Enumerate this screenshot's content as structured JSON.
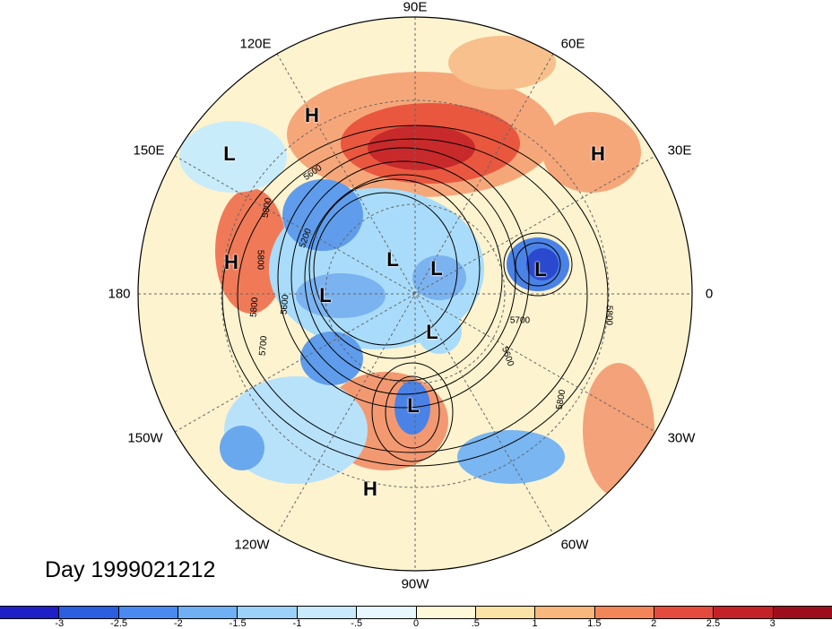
{
  "title_label": "Day 1999021212",
  "longitude_labels": [
    "90E",
    "60E",
    "30E",
    "0",
    "30W",
    "60W",
    "90W",
    "120W",
    "150W",
    "180",
    "150E",
    "120E"
  ],
  "pressure_centers": [
    {
      "name": "H",
      "region": "east-siberia"
    },
    {
      "name": "L",
      "region": "west-pacific"
    },
    {
      "name": "H",
      "region": "north-pacific"
    },
    {
      "name": "L",
      "region": "gulf-of-alaska"
    },
    {
      "name": "L",
      "region": "arctic-canada"
    },
    {
      "name": "L",
      "region": "arctic-greenland"
    },
    {
      "name": "L",
      "region": "hudson-bay"
    },
    {
      "name": "L",
      "region": "eastern-us"
    },
    {
      "name": "H",
      "region": "mexico"
    },
    {
      "name": "L",
      "region": "norwegian-sea"
    },
    {
      "name": "H",
      "region": "western-asia"
    }
  ],
  "contour_labels": [
    "5800",
    "5800",
    "5600",
    "5600",
    "5200",
    "5800",
    "5700",
    "5700",
    "5600",
    "5800",
    "5800"
  ],
  "colorbar": {
    "ticks": [
      "-3",
      "-2.5",
      "-2",
      "-1.5",
      "-1",
      "-.5",
      "0",
      ".5",
      "1",
      "1.5",
      "2",
      "2.5",
      "3"
    ],
    "colors": [
      "#1f1fc8",
      "#2a5fe0",
      "#4a8af0",
      "#6fb0f5",
      "#9cd2fa",
      "#c8eafc",
      "#e8f7fd",
      "#fdf8d8",
      "#fbe3a6",
      "#f8b77c",
      "#f28658",
      "#e44b3c",
      "#c42228",
      "#9e0d1c"
    ]
  }
}
